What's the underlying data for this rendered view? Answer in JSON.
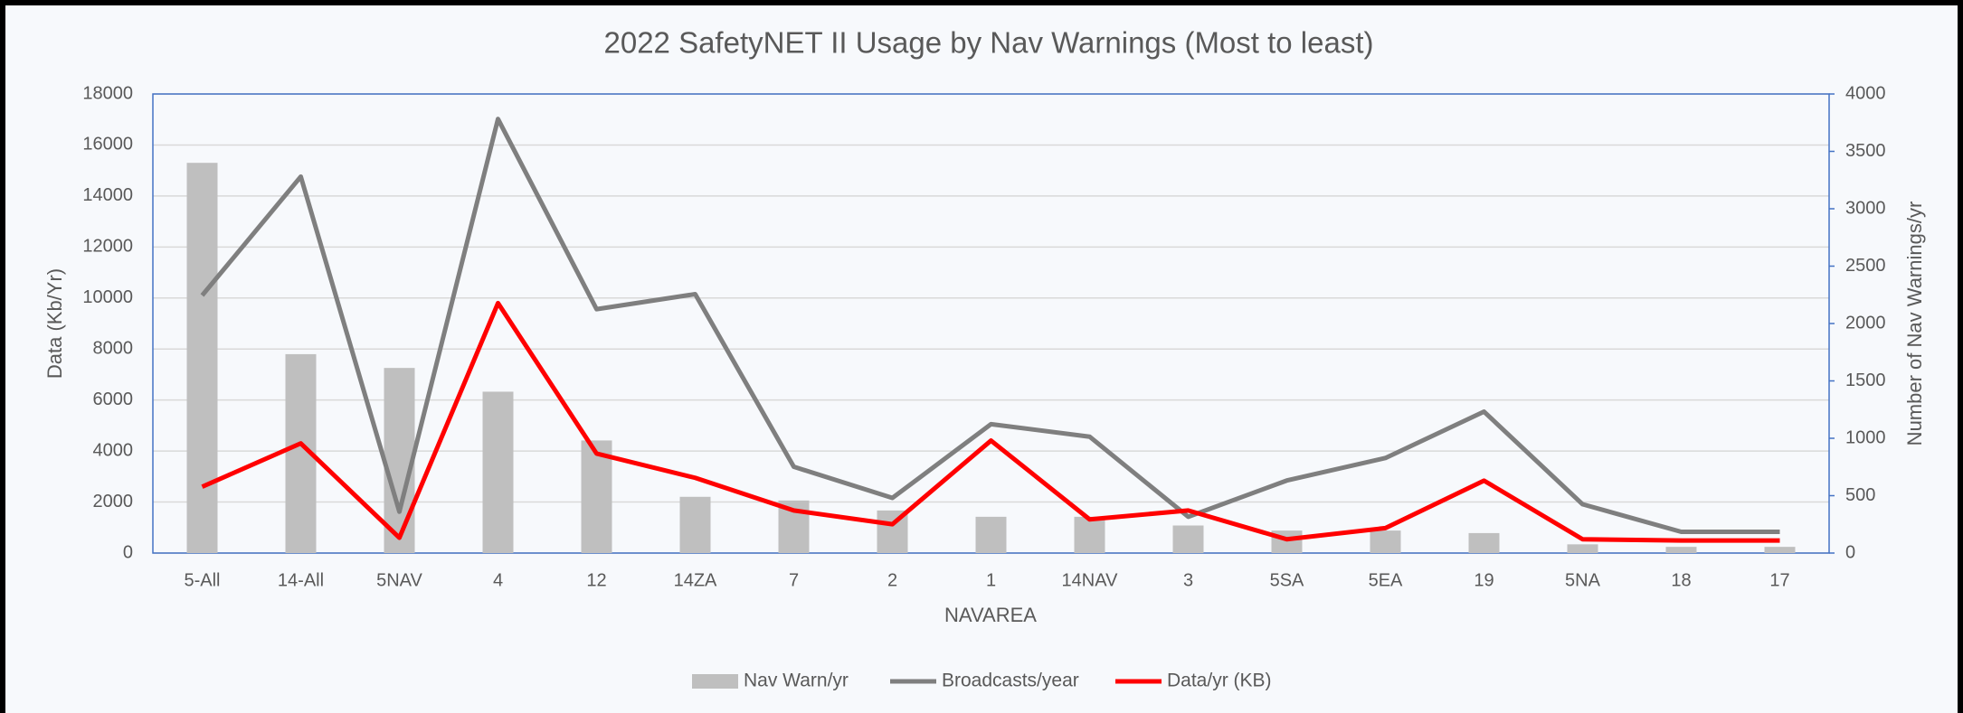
{
  "chart_data": {
    "type": "bar",
    "title": "2022 SafetyNET II Usage by Nav Warnings (Most to least)",
    "x_label": "NAVAREA",
    "y_label": "Data (Kb/Yr)",
    "y2_label": "Number of Nav Warnings/yr",
    "categories": [
      "5-All",
      "14-All",
      "5NAV",
      "4",
      "12",
      "14ZA",
      "7",
      "2",
      "1",
      "14NAV",
      "3",
      "5SA",
      "5EA",
      "19",
      "5NA",
      "18",
      "17"
    ],
    "series": [
      {
        "name": "Nav Warn/yr",
        "type": "bar",
        "axis": "y2",
        "color": "#bfbfbf",
        "values": [
          3400,
          1733,
          1613,
          1406,
          981,
          490,
          458,
          371,
          316,
          316,
          240,
          196,
          196,
          174,
          76,
          54,
          54
        ]
      },
      {
        "name": "Broadcasts/year",
        "type": "line",
        "axis": "y2",
        "color": "#7f7f7f",
        "values": [
          2245,
          3280,
          360,
          3782,
          2125,
          2256,
          752,
          480,
          1123,
          1014,
          316,
          632,
          828,
          1232,
          425,
          185,
          185
        ]
      },
      {
        "name": "Data/yr (KB)",
        "type": "line",
        "axis": "y",
        "color": "#ff0000",
        "values": [
          2600,
          4300,
          600,
          9800,
          3900,
          2950,
          1670,
          1130,
          4410,
          1320,
          1670,
          540,
          980,
          2840,
          540,
          490,
          490
        ]
      }
    ],
    "ylim": [
      0,
      18000
    ],
    "yticks": [
      0,
      2000,
      4000,
      6000,
      8000,
      10000,
      12000,
      14000,
      16000,
      18000
    ],
    "y2lim": [
      0,
      4000
    ],
    "y2ticks": [
      0,
      500,
      1000,
      1500,
      2000,
      2500,
      3000,
      3500,
      4000
    ],
    "grid": true,
    "legend": "bottom"
  }
}
